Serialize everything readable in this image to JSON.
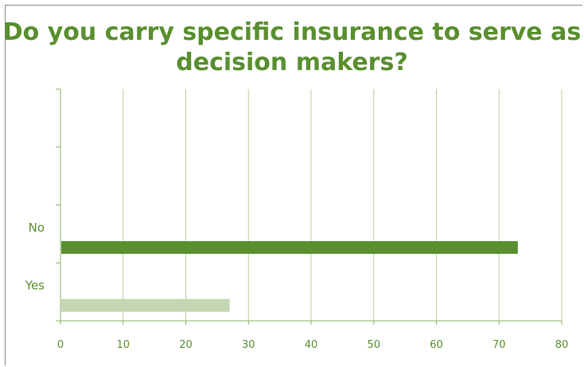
{
  "chart_data": {
    "type": "bar",
    "orientation": "horizontal",
    "title": "Do you carry specific insurance to serve as decision makers?",
    "categories": [
      "Yes",
      "No"
    ],
    "series": [
      {
        "values": [
          27,
          73
        ]
      }
    ],
    "bar_colors": [
      "#c5d7b2",
      "#5a8f2f"
    ],
    "xlim": [
      0,
      80
    ],
    "x_ticks": [
      0,
      10,
      20,
      30,
      40,
      50,
      60,
      70,
      80
    ],
    "x_tick_labels": [
      "0",
      "10",
      "20",
      "30",
      "40",
      "50",
      "60",
      "70",
      "80"
    ],
    "grid": true,
    "legend": "none",
    "title_color": "#5a8f2f",
    "grid_color": "#b9d19c"
  }
}
